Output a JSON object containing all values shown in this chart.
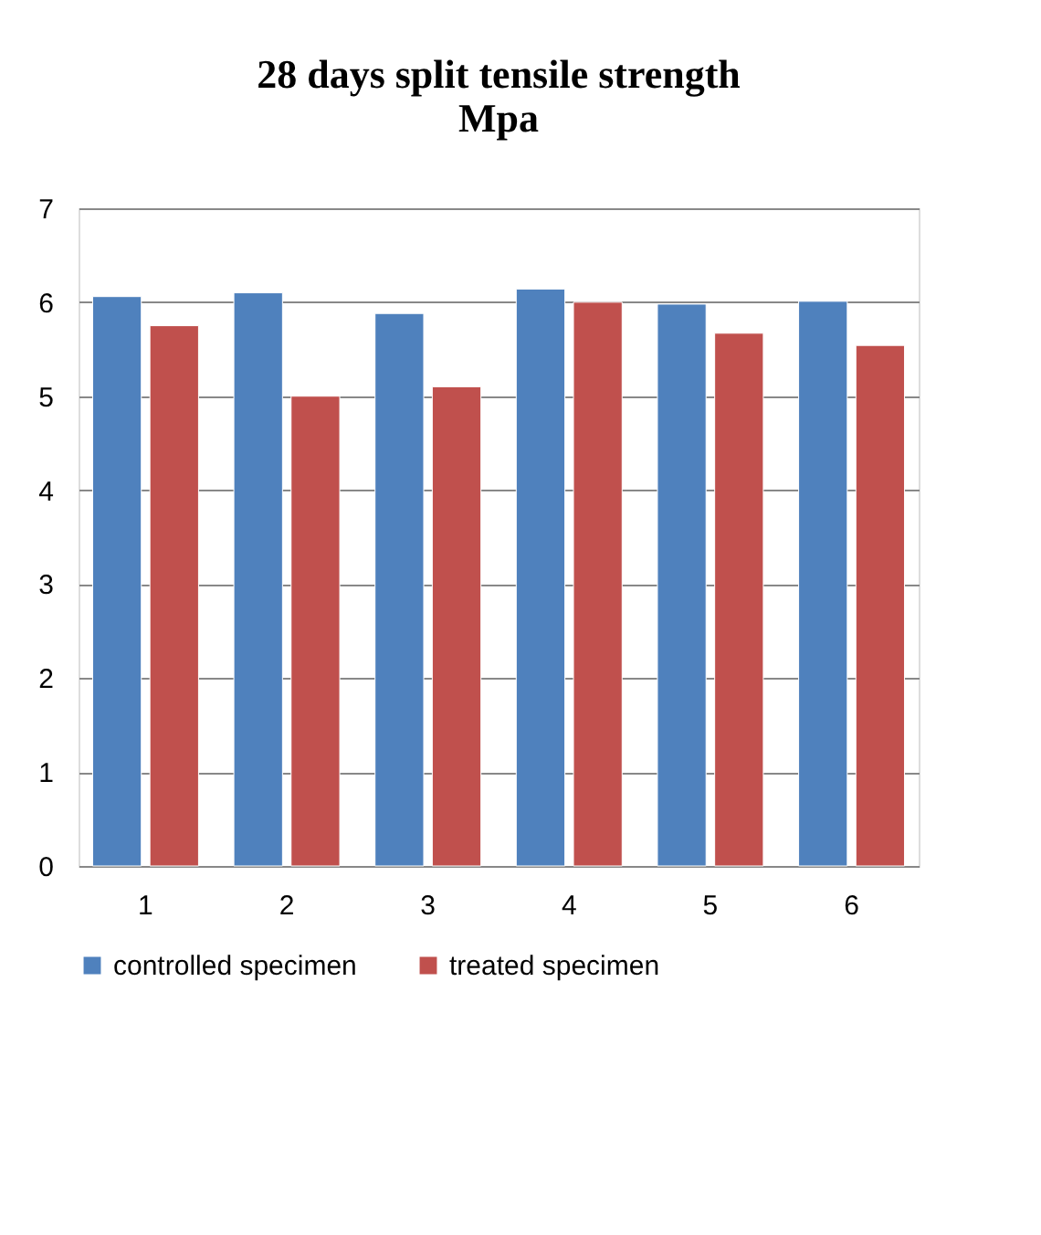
{
  "chart_data": {
    "type": "bar",
    "title": "28 days split tensile strength\nMpa",
    "categories": [
      "1",
      "2",
      "3",
      "4",
      "5",
      "6"
    ],
    "series": [
      {
        "name": "controlled specimen",
        "color": "#4f81bd",
        "values": [
          6.06,
          6.1,
          5.88,
          6.14,
          5.98,
          6.01
        ]
      },
      {
        "name": "treated specimen",
        "color": "#c0504d",
        "values": [
          5.75,
          5.0,
          5.1,
          6.0,
          5.67,
          5.54
        ]
      }
    ],
    "ylim": [
      0,
      7
    ],
    "yticks": [
      0,
      1,
      2,
      3,
      4,
      5,
      6,
      7
    ],
    "grid": "y",
    "legend": "bottom"
  }
}
